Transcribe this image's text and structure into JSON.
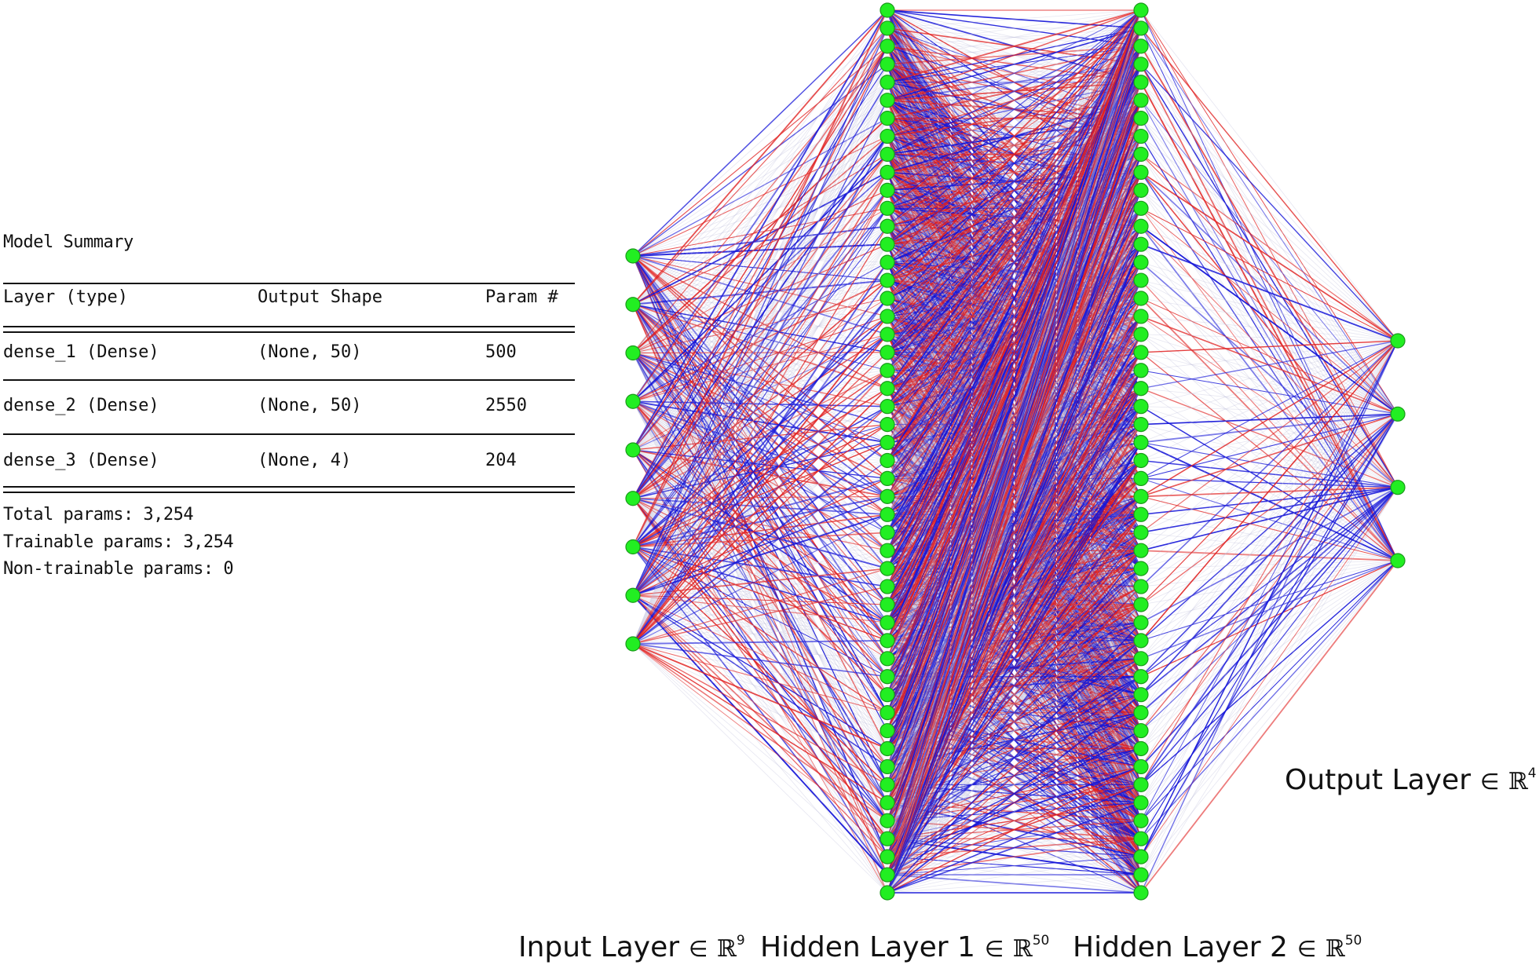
{
  "summary": {
    "title": "Model Summary",
    "headers": {
      "layer": "Layer (type)",
      "shape": "Output Shape",
      "params": "Param #"
    },
    "rows": [
      {
        "layer": "dense_1 (Dense)",
        "shape": "(None, 50)",
        "params": "500"
      },
      {
        "layer": "dense_2 (Dense)",
        "shape": "(None, 50)",
        "params": "2550"
      },
      {
        "layer": "dense_3 (Dense)",
        "shape": "(None, 4)",
        "params": "204"
      }
    ],
    "total": "Total params: 3,254",
    "trainable": "Trainable params: 3,254",
    "non_trainable": "Non-trainable params: 0"
  },
  "network": {
    "layers": [
      {
        "name": "Input Layer",
        "element_symbol": "∈",
        "space": "ℝ",
        "dim": "9",
        "nodes": 9
      },
      {
        "name": "Hidden Layer 1",
        "element_symbol": "∈",
        "space": "ℝ",
        "dim": "50",
        "nodes": 50
      },
      {
        "name": "Hidden Layer 2",
        "element_symbol": "∈",
        "space": "ℝ",
        "dim": "50",
        "nodes": 50
      },
      {
        "name": "Output Layer",
        "element_symbol": "∈",
        "space": "ℝ",
        "dim": "4",
        "nodes": 4
      }
    ],
    "colors": {
      "node_fill": "#22ee22",
      "node_stroke": "#1a9a1a",
      "positive_edge": "#e02020",
      "negative_edge": "#1515d8",
      "weak_edge": "#b8b8d8"
    }
  }
}
